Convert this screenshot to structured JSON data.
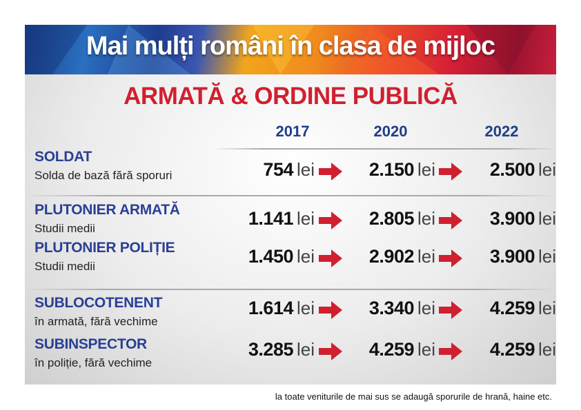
{
  "header": {
    "title": "Mai mulți români în clasa de mijloc"
  },
  "section": {
    "title": "ARMATĂ & ORDINE PUBLICĂ"
  },
  "years": [
    "2017",
    "2020",
    "2022"
  ],
  "unit": "lei",
  "rows": [
    {
      "title": "SOLDAT",
      "subtitle": "Solda de bază fără sporuri",
      "values": [
        "754",
        "2.150",
        "2.500"
      ]
    },
    {
      "title": "PLUTONIER ARMATĂ",
      "subtitle": "Studii medii",
      "values": [
        "1.141",
        "2.805",
        "3.900"
      ]
    },
    {
      "title": "PLUTONIER POLIȚIE",
      "subtitle": "Studii medii",
      "values": [
        "1.450",
        "2.902",
        "3.900"
      ]
    },
    {
      "title": "SUBLOCOTENENT",
      "subtitle": "în armată, fără vechime",
      "values": [
        "1.614",
        "3.340",
        "4.259"
      ]
    },
    {
      "title": "SUBINSPECTOR",
      "subtitle": "în poliție, fără vechime",
      "values": [
        "3.285",
        "4.259",
        "4.259"
      ]
    }
  ],
  "footnote": "la toate veniturile de mai sus se adaugă sporurile de hrană, haine etc.",
  "colors": {
    "title_red": "#d0202f",
    "label_blue": "#2a3f95",
    "year_blue": "#1e3f87",
    "arrow_red": "#d0202f"
  }
}
